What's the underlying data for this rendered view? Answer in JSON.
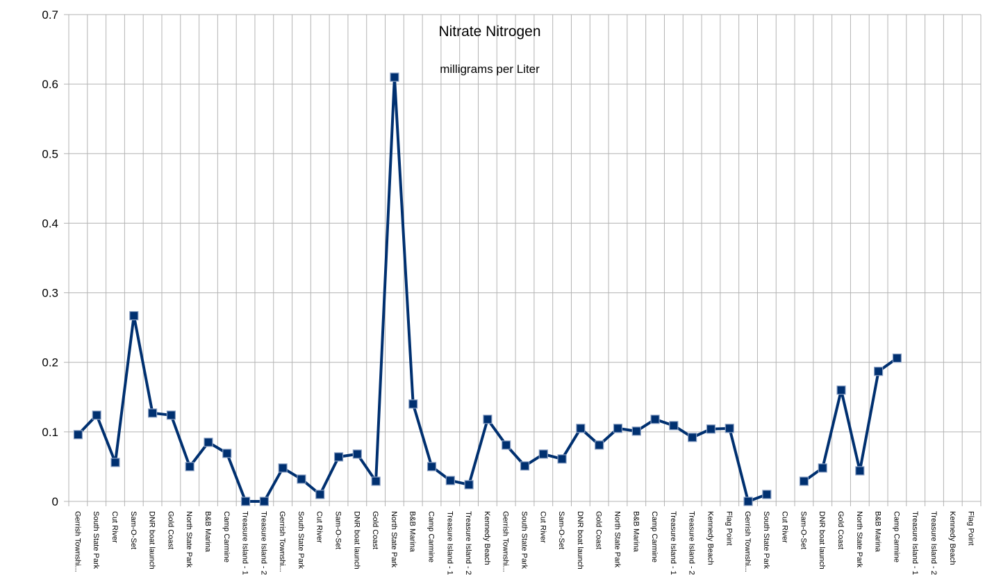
{
  "chart_data": {
    "type": "line",
    "title": "Nitrate Nitrogen",
    "subtitle": "milligrams per Liter",
    "xlabel": "",
    "ylabel": "",
    "ylim": [
      0,
      0.7
    ],
    "yticks": [
      "0",
      "0.1",
      "0.2",
      "0.3",
      "0.4",
      "0.5",
      "0.6",
      "0.7"
    ],
    "grid": true,
    "legend": "none",
    "categories": [
      "Gerrish Townshi...",
      "South State Park",
      "Cut River",
      "Sam-O-Set",
      "DNR boat launch",
      "Gold Coast",
      "North State Park",
      "B&B Marina",
      "Camp Carmine",
      "Treasure Island - 1",
      "Treasure Island - 2",
      "Gerrish Townshi...",
      "South State Park",
      "Cut River",
      "Sam-O-Set",
      "DNR boat launch",
      "Gold Coast",
      "North State Park",
      "B&B Marina",
      "Camp Carmine",
      "Treasure Island - 1",
      "Treasure Island - 2",
      "Kennedy Beach",
      "Gerrish Townshi...",
      "South State Park",
      "Cut River",
      "Sam-O-Set",
      "DNR boat launch",
      "Gold Coast",
      "North State Park",
      "B&B Marina",
      "Camp Carmine",
      "Treasure Island - 1",
      "Treasure Island - 2",
      "Kennedy Beach",
      "Flag Point",
      "Gerrish Townshi...",
      "South State Park",
      "Cut River",
      "Sam-O-Set",
      "DNR boat launch",
      "Gold Coast",
      "North State Park",
      "B&B Marina",
      "Camp Carmine",
      "Treasure Island - 1",
      "Treasure Island - 2",
      "Kennedy Beach",
      "Flag Point"
    ],
    "series": [
      {
        "name": "Nitrate Nitrogen",
        "color": "#003070",
        "values": [
          0.096,
          0.124,
          0.056,
          0.267,
          0.127,
          0.124,
          0.05,
          0.085,
          0.069,
          0.0,
          0.0,
          0.048,
          0.032,
          0.01,
          0.064,
          0.068,
          0.029,
          0.61,
          0.14,
          0.05,
          0.03,
          0.024,
          0.118,
          0.081,
          0.051,
          0.068,
          0.061,
          0.105,
          0.081,
          0.105,
          0.101,
          0.118,
          0.109,
          0.092,
          0.104,
          0.105,
          0.0,
          0.01,
          null,
          0.029,
          0.048,
          0.16,
          0.044,
          0.187,
          0.206,
          null,
          null,
          null,
          null
        ]
      }
    ]
  }
}
